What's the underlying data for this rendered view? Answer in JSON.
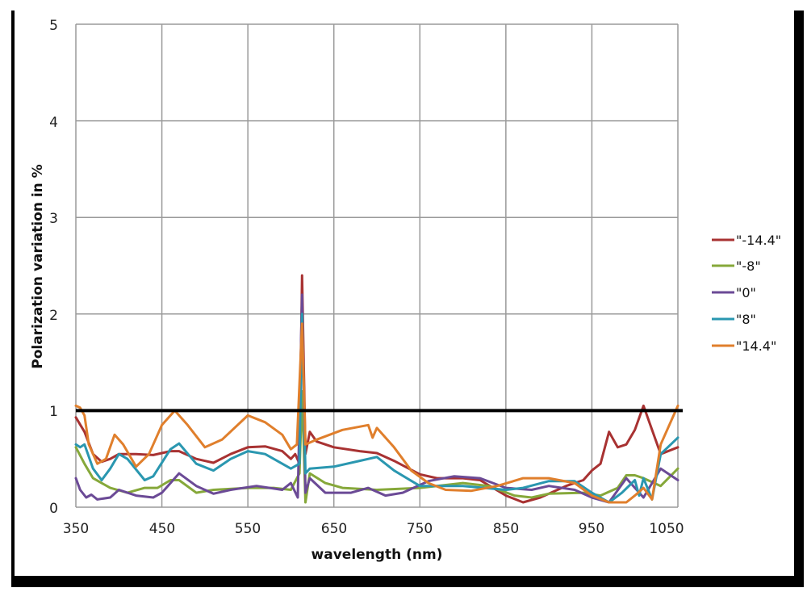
{
  "chart_data": {
    "type": "line",
    "title": "",
    "xlabel": "wavelength (nm)",
    "ylabel": "Polarization variation  in %",
    "xlim": [
      350,
      1050
    ],
    "ylim": [
      0,
      5
    ],
    "xticks": [
      350,
      450,
      550,
      650,
      750,
      850,
      950,
      1050
    ],
    "yticks": [
      0,
      1,
      2,
      3,
      4,
      5
    ],
    "grid": true,
    "legend_position": "right",
    "threshold_line": {
      "y": 1,
      "color": "#000000"
    },
    "series": [
      {
        "name": "\"-14.4\"",
        "color": "#a83232",
        "x": [
          350,
          360,
          370,
          380,
          390,
          400,
          420,
          440,
          460,
          470,
          490,
          510,
          530,
          550,
          570,
          590,
          600,
          605,
          610,
          613,
          617,
          622,
          630,
          650,
          680,
          700,
          720,
          750,
          770,
          800,
          820,
          850,
          870,
          890,
          920,
          940,
          950,
          960,
          970,
          980,
          990,
          1000,
          1010,
          1020,
          1030,
          1050
        ],
        "values": [
          0.93,
          0.78,
          0.55,
          0.47,
          0.5,
          0.55,
          0.55,
          0.54,
          0.58,
          0.58,
          0.5,
          0.46,
          0.55,
          0.62,
          0.63,
          0.58,
          0.5,
          0.55,
          0.45,
          2.4,
          0.55,
          0.78,
          0.68,
          0.62,
          0.58,
          0.56,
          0.48,
          0.34,
          0.3,
          0.3,
          0.28,
          0.12,
          0.05,
          0.1,
          0.22,
          0.28,
          0.38,
          0.45,
          0.78,
          0.62,
          0.65,
          0.8,
          1.05,
          0.8,
          0.55,
          0.62
        ]
      },
      {
        "name": "\"-8\"",
        "color": "#86a83a",
        "x": [
          350,
          360,
          370,
          390,
          410,
          430,
          445,
          460,
          470,
          490,
          510,
          550,
          580,
          600,
          610,
          613,
          617,
          622,
          640,
          660,
          700,
          750,
          800,
          830,
          860,
          880,
          900,
          940,
          960,
          980,
          990,
          1000,
          1010,
          1030,
          1050
        ],
        "values": [
          0.62,
          0.45,
          0.3,
          0.2,
          0.15,
          0.2,
          0.2,
          0.28,
          0.28,
          0.15,
          0.18,
          0.2,
          0.2,
          0.18,
          0.35,
          1.2,
          0.05,
          0.35,
          0.25,
          0.2,
          0.18,
          0.2,
          0.25,
          0.22,
          0.12,
          0.1,
          0.14,
          0.15,
          0.12,
          0.2,
          0.33,
          0.33,
          0.3,
          0.22,
          0.4
        ]
      },
      {
        "name": "\"0\"",
        "color": "#6b4a96",
        "x": [
          350,
          355,
          362,
          368,
          375,
          390,
          400,
          420,
          440,
          450,
          470,
          490,
          510,
          530,
          560,
          590,
          600,
          608,
          613,
          617,
          622,
          640,
          670,
          690,
          710,
          730,
          760,
          790,
          820,
          850,
          880,
          900,
          930,
          950,
          970,
          990,
          1010,
          1030,
          1050
        ],
        "values": [
          0.3,
          0.18,
          0.1,
          0.13,
          0.08,
          0.1,
          0.18,
          0.12,
          0.1,
          0.15,
          0.35,
          0.22,
          0.14,
          0.18,
          0.22,
          0.18,
          0.25,
          0.1,
          2.2,
          0.15,
          0.3,
          0.15,
          0.15,
          0.2,
          0.12,
          0.15,
          0.27,
          0.32,
          0.3,
          0.2,
          0.18,
          0.22,
          0.18,
          0.1,
          0.05,
          0.3,
          0.1,
          0.4,
          0.28
        ]
      },
      {
        "name": "\"8\"",
        "color": "#2a97b0",
        "x": [
          350,
          355,
          360,
          370,
          380,
          390,
          400,
          410,
          430,
          440,
          460,
          470,
          490,
          510,
          530,
          550,
          570,
          590,
          600,
          610,
          613,
          617,
          622,
          650,
          680,
          700,
          720,
          750,
          800,
          850,
          870,
          900,
          930,
          950,
          970,
          985,
          1000,
          1005,
          1010,
          1020,
          1030,
          1050
        ],
        "values": [
          0.65,
          0.62,
          0.65,
          0.4,
          0.28,
          0.4,
          0.55,
          0.5,
          0.28,
          0.32,
          0.6,
          0.66,
          0.45,
          0.38,
          0.5,
          0.58,
          0.55,
          0.45,
          0.4,
          0.45,
          2.0,
          0.35,
          0.4,
          0.42,
          0.48,
          0.52,
          0.38,
          0.22,
          0.22,
          0.18,
          0.2,
          0.27,
          0.27,
          0.15,
          0.05,
          0.15,
          0.28,
          0.12,
          0.3,
          0.08,
          0.55,
          0.72
        ]
      },
      {
        "name": "\"14.4\"",
        "color": "#e07f2c",
        "x": [
          350,
          355,
          360,
          365,
          375,
          385,
          395,
          405,
          420,
          435,
          450,
          465,
          480,
          500,
          520,
          550,
          570,
          590,
          600,
          607,
          613,
          617,
          630,
          660,
          690,
          695,
          700,
          720,
          740,
          760,
          780,
          810,
          840,
          870,
          900,
          930,
          950,
          970,
          990,
          1000,
          1010,
          1020,
          1030,
          1050
        ],
        "values": [
          1.05,
          1.03,
          0.95,
          0.65,
          0.45,
          0.5,
          0.75,
          0.65,
          0.42,
          0.55,
          0.85,
          1.0,
          0.85,
          0.62,
          0.7,
          0.95,
          0.88,
          0.75,
          0.6,
          0.65,
          1.9,
          0.65,
          0.7,
          0.8,
          0.85,
          0.72,
          0.82,
          0.62,
          0.38,
          0.25,
          0.18,
          0.17,
          0.22,
          0.3,
          0.3,
          0.25,
          0.12,
          0.05,
          0.05,
          0.12,
          0.2,
          0.08,
          0.65,
          1.05
        ]
      }
    ]
  },
  "legend": {
    "items": [
      {
        "label": "\"-14.4\"",
        "color": "#a83232"
      },
      {
        "label": "\"-8\"",
        "color": "#86a83a"
      },
      {
        "label": "\"0\"",
        "color": "#6b4a96"
      },
      {
        "label": "\"8\"",
        "color": "#2a97b0"
      },
      {
        "label": "\"14.4\"",
        "color": "#e07f2c"
      }
    ]
  },
  "axes": {
    "x_title": "wavelength (nm)",
    "y_title": "Polarization variation  in %",
    "x_tick_labels": [
      "350",
      "450",
      "550",
      "650",
      "750",
      "850",
      "950",
      "1050"
    ],
    "y_tick_labels": [
      "0",
      "1",
      "2",
      "3",
      "4",
      "5"
    ]
  }
}
